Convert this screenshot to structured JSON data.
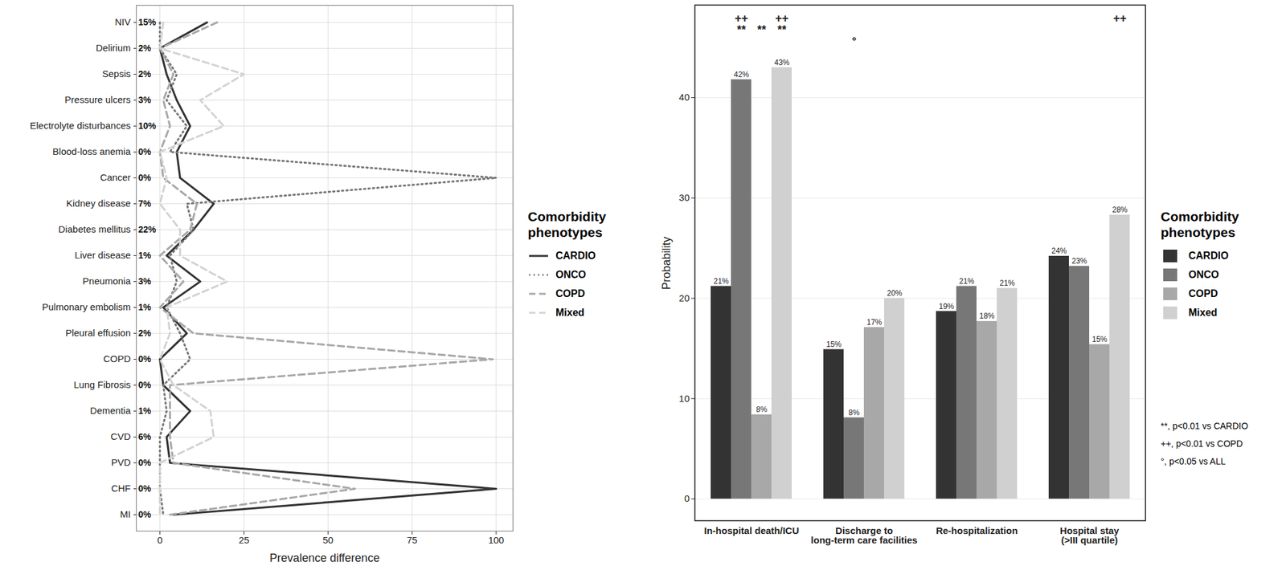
{
  "chart_data": [
    {
      "type": "line",
      "categories": [
        "NIV",
        "Delirium",
        "Sepsis",
        "Pressure ulcers",
        "Electrolyte disturbances",
        "Blood-loss anemia",
        "Cancer",
        "Kidney disease",
        "Diabetes mellitus",
        "Liver disease",
        "Pneumonia",
        "Pulmonary embolism",
        "Pleural effusion",
        "COPD",
        "Lung Fibrosis",
        "Dementia",
        "CVD",
        "PVD",
        "CHF",
        "MI"
      ],
      "reference_labels": [
        "15%",
        "2%",
        "2%",
        "3%",
        "10%",
        "0%",
        "0%",
        "7%",
        "22%",
        "1%",
        "3%",
        "1%",
        "2%",
        "0%",
        "0%",
        "1%",
        "6%",
        "0%",
        "0%",
        "0%"
      ],
      "x_label": "Prevalence difference",
      "legend_title": "Comorbidity phenotypes",
      "legend": "right",
      "xlim": [
        -7,
        105
      ],
      "xticks": [
        0,
        25,
        50,
        75,
        100
      ],
      "grid": true,
      "series": [
        {
          "name": "CARDIO",
          "color": "#333333",
          "line_style": "solid",
          "values": [
            14,
            0,
            2,
            5,
            9,
            5,
            6,
            16,
            10,
            2,
            12,
            1,
            8,
            0,
            1,
            9,
            2,
            3,
            100,
            4
          ]
        },
        {
          "name": "ONCO",
          "color": "#777777",
          "line_style": "dotted",
          "values": [
            0,
            0,
            5,
            2,
            8,
            3,
            100,
            8,
            10,
            3,
            5,
            2,
            6,
            9,
            1,
            2,
            0,
            0,
            0,
            1
          ]
        },
        {
          "name": "COPD",
          "color": "#a8a8a8",
          "line_style": "dashed",
          "values": [
            17,
            0,
            4,
            1,
            3,
            0,
            1,
            11,
            9,
            0,
            7,
            0,
            10,
            99,
            3,
            3,
            3,
            4,
            58,
            3
          ]
        },
        {
          "name": "Mixed",
          "color": "#d3d3d3",
          "line_style": "dashed",
          "values": [
            1,
            0,
            25,
            12,
            19,
            0,
            2,
            0,
            6,
            6,
            20,
            2,
            3,
            0,
            4,
            15,
            16,
            0,
            0,
            0
          ]
        }
      ]
    },
    {
      "type": "bar",
      "categories": [
        "In-hospital death/ICU",
        "Discharge to\nlong-term care facilities",
        "Re-hospitalization",
        "Hospital stay\n(>III quartile)"
      ],
      "y_label": "Probability",
      "legend_title": "Comorbidity phenotypes",
      "legend": "right",
      "ylim": [
        -2.2,
        49.2
      ],
      "yticks": [
        0,
        10,
        20,
        30,
        40
      ],
      "grid": true,
      "data_labels": true,
      "series": [
        {
          "name": "CARDIO",
          "color": "#333333",
          "values": [
            21.2,
            14.9,
            18.7,
            24.2
          ],
          "value_labels": [
            "21%",
            "15%",
            "19%",
            "24%"
          ]
        },
        {
          "name": "ONCO",
          "color": "#777777",
          "values": [
            41.8,
            8.1,
            21.2,
            23.2
          ],
          "value_labels": [
            "42%",
            "8%",
            "21%",
            "23%"
          ]
        },
        {
          "name": "COPD",
          "color": "#a8a8a8",
          "values": [
            8.4,
            17.1,
            17.7,
            15.4
          ],
          "value_labels": [
            "8%",
            "17%",
            "18%",
            "15%"
          ]
        },
        {
          "name": "Mixed",
          "color": "#d0d0d0",
          "values": [
            43.0,
            20.0,
            21.0,
            28.3
          ],
          "value_labels": [
            "43%",
            "20%",
            "21%",
            "28%"
          ]
        }
      ],
      "annotations": [
        {
          "text": "++",
          "targets": [
            {
              "category": "In-hospital death/ICU",
              "series": "ONCO"
            },
            {
              "category": "In-hospital death/ICU",
              "series": "Mixed"
            },
            {
              "category": "Hospital stay\n(>III quartile)",
              "series": "Mixed"
            }
          ]
        },
        {
          "text": "**",
          "targets": [
            {
              "category": "In-hospital death/ICU",
              "series": "ONCO"
            },
            {
              "category": "In-hospital death/ICU",
              "series": "COPD"
            },
            {
              "category": "In-hospital death/ICU",
              "series": "Mixed"
            }
          ]
        },
        {
          "text": "°",
          "targets": [
            {
              "category": "Discharge to\nlong-term care facilities",
              "series": "ONCO"
            }
          ]
        }
      ],
      "notes": [
        "**, p<0.01 vs CARDIO",
        "++, p<0.01 vs COPD",
        "°, p<0.05 vs ALL"
      ]
    }
  ]
}
